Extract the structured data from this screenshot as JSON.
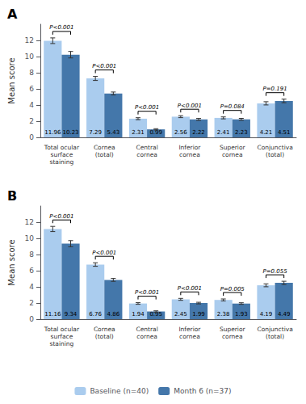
{
  "chart_data": [
    {
      "type": "bar",
      "title": "A",
      "categories": [
        "Total ocular\nsurface\nstaining",
        "Cornea\n(total)",
        "Central\ncornea",
        "Inferior\ncornea",
        "Superior\ncornea",
        "Conjunctiva\n(total)"
      ],
      "series": [
        {
          "name": "Baseline (n=40)",
          "color": "#aaccee",
          "values": [
            11.96,
            7.29,
            2.31,
            2.56,
            2.41,
            4.21
          ],
          "errors": [
            0.35,
            0.25,
            0.12,
            0.12,
            0.12,
            0.2
          ]
        },
        {
          "name": "Month 6 (n=37)",
          "color": "#4477aa",
          "values": [
            10.23,
            5.43,
            0.99,
            2.22,
            2.23,
            4.51
          ],
          "errors": [
            0.4,
            0.18,
            0.08,
            0.12,
            0.12,
            0.22
          ]
        }
      ],
      "annotations": [
        "P<0.001",
        "P<0.001",
        "P<0.001",
        "P<0.001",
        "P=0.084",
        "P=0.191"
      ],
      "ylabel": "Mean score",
      "ylim": [
        0,
        14.0
      ],
      "yticks": [
        0,
        2,
        4,
        6,
        8,
        10,
        12
      ],
      "data_labels": true,
      "grid": false,
      "legend": "bottom"
    },
    {
      "type": "bar",
      "title": "B",
      "categories": [
        "Total ocular\nsurface\nstaining",
        "Cornea\n(total)",
        "Central\ncornea",
        "Inferior\ncornea",
        "Superior\ncornea",
        "Conjunctiva\n(total)"
      ],
      "series": [
        {
          "name": "Baseline (n=40)",
          "color": "#aaccee",
          "values": [
            11.16,
            6.76,
            1.94,
            2.45,
            2.38,
            4.19
          ],
          "errors": [
            0.32,
            0.22,
            0.1,
            0.12,
            0.12,
            0.18
          ]
        },
        {
          "name": "Month 6 (n=37)",
          "color": "#4477aa",
          "values": [
            9.34,
            4.86,
            0.95,
            1.99,
            1.93,
            4.49
          ],
          "errors": [
            0.38,
            0.18,
            0.08,
            0.1,
            0.1,
            0.2
          ]
        }
      ],
      "annotations": [
        "P<0.001",
        "P<0.001",
        "P<0.001",
        "P<0.001",
        "P=0.005",
        "P=0.055"
      ],
      "ylabel": "Mean score",
      "ylim": [
        0,
        14.0
      ],
      "yticks": [
        0,
        2,
        4,
        6,
        8,
        10,
        12
      ],
      "data_labels": true,
      "grid": false,
      "legend": "bottom"
    }
  ]
}
